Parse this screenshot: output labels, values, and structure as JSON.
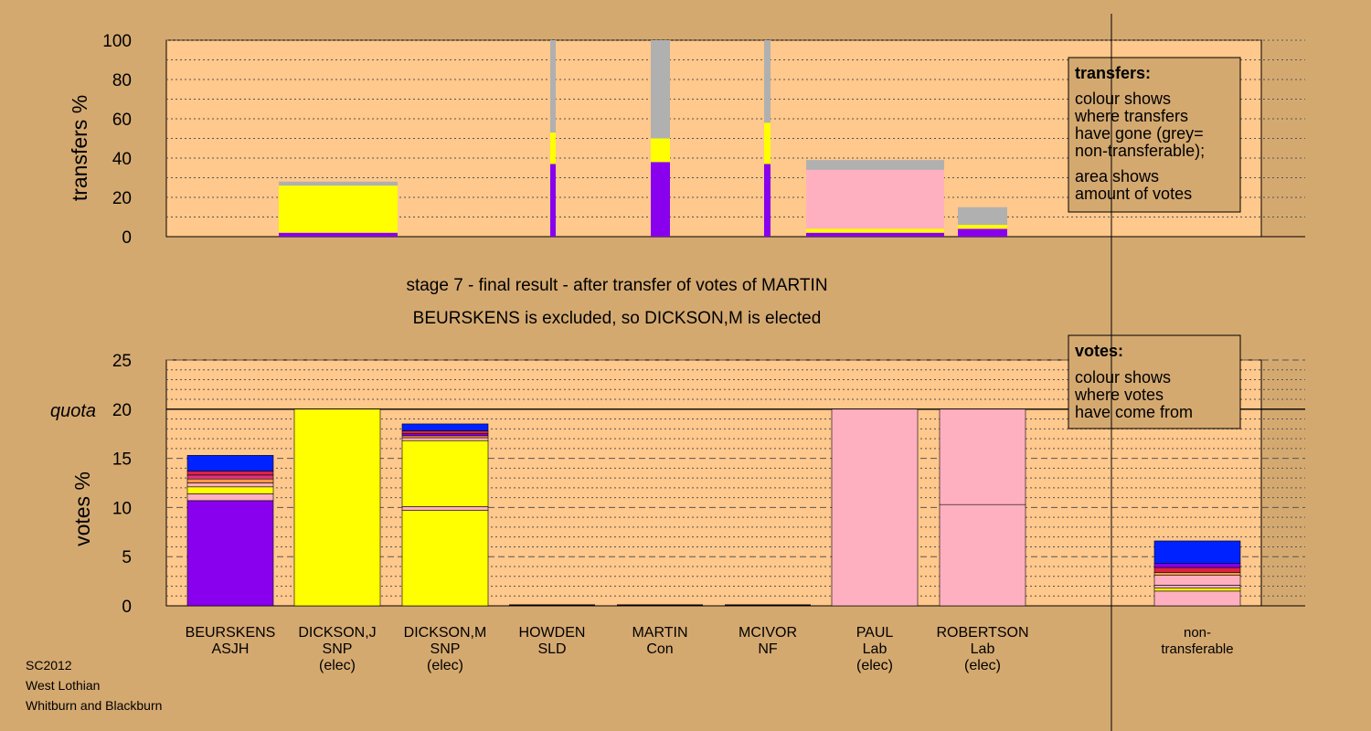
{
  "colors": {
    "background": "#d4a970",
    "plot_bg": "#ffc88c",
    "purple": "#8800ee",
    "yellow": "#ffff00",
    "pink": "#ffb0c0",
    "grey": "#b0b0b0",
    "blue": "#0022ff",
    "red": "#dd2244",
    "orange": "#ff9944",
    "magenta": "#dd3388"
  },
  "headline": {
    "line1": "stage 7 - final result - after transfer of votes of MARTIN",
    "line2": "BEURSKENS is excluded, so DICKSON,M is elected"
  },
  "footer": {
    "line1": "SC2012",
    "line2": "West Lothian",
    "line3": "Whitburn and Blackburn"
  },
  "transfers_legend": {
    "title": "transfers:",
    "lines": [
      "colour shows",
      "where transfers",
      "have gone (grey=",
      "non-transferable);",
      "area shows",
      "amount of votes"
    ]
  },
  "votes_legend": {
    "title": "votes:",
    "lines": [
      "colour shows",
      "where votes",
      "have come from"
    ]
  },
  "chart_data": [
    {
      "type": "bar",
      "title": "transfers",
      "ylabel": "transfers %",
      "ylim": [
        0,
        100
      ],
      "yticks": [
        0,
        20,
        40,
        60,
        80,
        100
      ],
      "grid": true,
      "legend": "top-right",
      "bars": [
        {
          "stage": "bar-1",
          "segments": [
            {
              "color": "purple",
              "value": 2
            },
            {
              "color": "yellow",
              "value": 24
            },
            {
              "color": "grey",
              "value": 2
            }
          ]
        },
        {
          "stage": "bar-2",
          "segments": [
            {
              "color": "purple",
              "value": 37
            },
            {
              "color": "yellow",
              "value": 16
            },
            {
              "color": "grey",
              "value": 47
            }
          ]
        },
        {
          "stage": "bar-3",
          "segments": [
            {
              "color": "purple",
              "value": 38
            },
            {
              "color": "yellow",
              "value": 12
            },
            {
              "color": "grey",
              "value": 50
            }
          ]
        },
        {
          "stage": "bar-4",
          "segments": [
            {
              "color": "purple",
              "value": 37
            },
            {
              "color": "yellow",
              "value": 21
            },
            {
              "color": "grey",
              "value": 42
            }
          ]
        },
        {
          "stage": "bar-5",
          "segments": [
            {
              "color": "purple",
              "value": 2
            },
            {
              "color": "yellow",
              "value": 2
            },
            {
              "color": "pink",
              "value": 30
            },
            {
              "color": "grey",
              "value": 5
            }
          ]
        },
        {
          "stage": "bar-6",
          "segments": [
            {
              "color": "purple",
              "value": 4
            },
            {
              "color": "yellow",
              "value": 2
            },
            {
              "color": "grey",
              "value": 9
            }
          ]
        }
      ]
    },
    {
      "type": "bar",
      "title": "votes",
      "ylabel": "votes %",
      "ylim": [
        0,
        25
      ],
      "yticks": [
        0,
        5,
        10,
        15,
        20,
        25
      ],
      "quota": 20,
      "quota_label": "quota",
      "grid": true,
      "legend": "top-right",
      "categories": [
        {
          "name": "BEURSKENS",
          "party": "ASJH",
          "note": ""
        },
        {
          "name": "DICKSON,J",
          "party": "SNP",
          "note": "(elec)"
        },
        {
          "name": "DICKSON,M",
          "party": "SNP",
          "note": "(elec)"
        },
        {
          "name": "HOWDEN",
          "party": "SLD",
          "note": ""
        },
        {
          "name": "MARTIN",
          "party": "Con",
          "note": ""
        },
        {
          "name": "MCIVOR",
          "party": "NF",
          "note": ""
        },
        {
          "name": "PAUL",
          "party": "Lab",
          "note": "(elec)"
        },
        {
          "name": "ROBERTSON",
          "party": "Lab",
          "note": "(elec)"
        },
        {
          "name": "non-",
          "party": "transferable",
          "note": ""
        }
      ],
      "stacks": [
        [
          {
            "color": "purple",
            "value": 10.7
          },
          {
            "color": "pink",
            "value": 0.7
          },
          {
            "color": "yellow",
            "value": 0.7
          },
          {
            "color": "pink",
            "value": 0.4
          },
          {
            "color": "orange",
            "value": 0.4
          },
          {
            "color": "magenta",
            "value": 0.4
          },
          {
            "color": "red",
            "value": 0.4
          },
          {
            "color": "blue",
            "value": 1.6
          }
        ],
        [
          {
            "color": "yellow",
            "value": 20.0
          }
        ],
        [
          {
            "color": "yellow",
            "value": 9.7
          },
          {
            "color": "pink",
            "value": 0.4
          },
          {
            "color": "yellow",
            "value": 6.7
          },
          {
            "color": "pink",
            "value": 0.3
          },
          {
            "color": "orange",
            "value": 0.2
          },
          {
            "color": "purple",
            "value": 0.2
          },
          {
            "color": "red",
            "value": 0.3
          },
          {
            "color": "blue",
            "value": 0.7
          }
        ],
        [],
        [],
        [],
        [
          {
            "color": "pink",
            "value": 20.0
          }
        ],
        [
          {
            "color": "pink",
            "value": 10.3
          },
          {
            "color": "pink",
            "value": 9.7
          }
        ],
        [
          {
            "color": "pink",
            "value": 1.5
          },
          {
            "color": "yellow",
            "value": 0.3
          },
          {
            "color": "pink",
            "value": 0.3
          },
          {
            "color": "pink",
            "value": 1.0
          },
          {
            "color": "orange",
            "value": 0.3
          },
          {
            "color": "red",
            "value": 0.5
          },
          {
            "color": "purple",
            "value": 0.4
          },
          {
            "color": "blue",
            "value": 2.3
          }
        ]
      ]
    }
  ]
}
